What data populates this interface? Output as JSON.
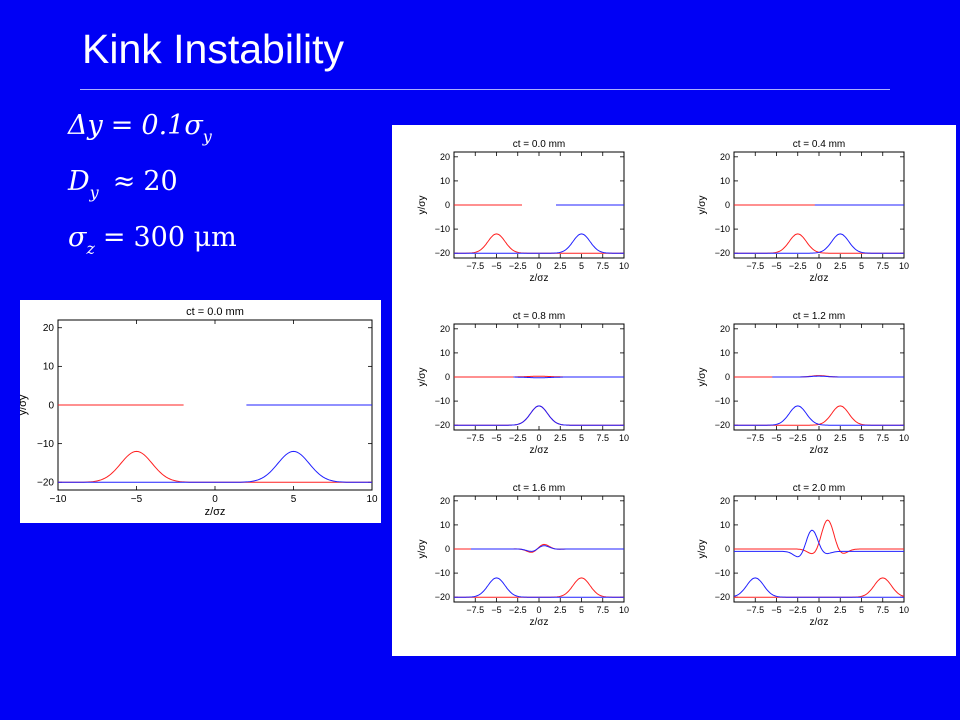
{
  "slide": {
    "title": "Kink Instability",
    "equations": [
      {
        "lhs": "Δy",
        "sym": "=",
        "rhs": "0.1σ",
        "rhs_sub": "y"
      },
      {
        "lhs": "D",
        "lhs_sub": "y",
        "sym": "≈",
        "rhs": "20"
      },
      {
        "lhs": "σ",
        "lhs_sub": "z",
        "sym": "=",
        "rhs": "300 μm"
      }
    ]
  },
  "colors": {
    "background": "#0000f5",
    "bunch1": "#ff2020",
    "bunch2": "#2020ff",
    "panel": "#ffffff"
  },
  "chart_data": [
    {
      "type": "line",
      "title": "ct = 0.0 mm",
      "xlabel": "z/σz",
      "ylabel": "y/σy",
      "xlim": [
        -10,
        10
      ],
      "ylim": [
        -22,
        22
      ],
      "xticks": [
        -10,
        -5,
        0,
        5,
        10
      ],
      "xtick_labels": [
        "−10",
        "−5",
        "0",
        "5",
        "10"
      ],
      "yticks": [
        -20,
        -10,
        0,
        10,
        20
      ],
      "ytick_labels": [
        "−20",
        "−10",
        "0",
        "10",
        "20"
      ],
      "ct": 0.0
    },
    {
      "type": "line",
      "grid": [
        {
          "title": "ct = 0.0 mm",
          "ct": 0.0
        },
        {
          "title": "ct = 0.4 mm",
          "ct": 0.4
        },
        {
          "title": "ct = 0.8 mm",
          "ct": 0.8
        },
        {
          "title": "ct = 1.2 mm",
          "ct": 1.2
        },
        {
          "title": "ct = 1.6 mm",
          "ct": 1.6
        },
        {
          "title": "ct = 2.0 mm",
          "ct": 2.0
        }
      ],
      "xlabel": "z/σz",
      "ylabel": "y/σy",
      "xlim": [
        -10,
        10
      ],
      "ylim": [
        -22,
        22
      ],
      "xticks": [
        -7.5,
        -5,
        -2.5,
        0,
        2.5,
        5,
        7.5,
        10
      ],
      "xtick_labels": [
        "−7.5",
        "−5",
        "−2.5",
        "0",
        "2.5",
        "5",
        "7.5",
        "10"
      ],
      "yticks": [
        -20,
        -10,
        0,
        10,
        20
      ],
      "ytick_labels": [
        "−20",
        "−10",
        "0",
        "10",
        "20"
      ]
    }
  ]
}
